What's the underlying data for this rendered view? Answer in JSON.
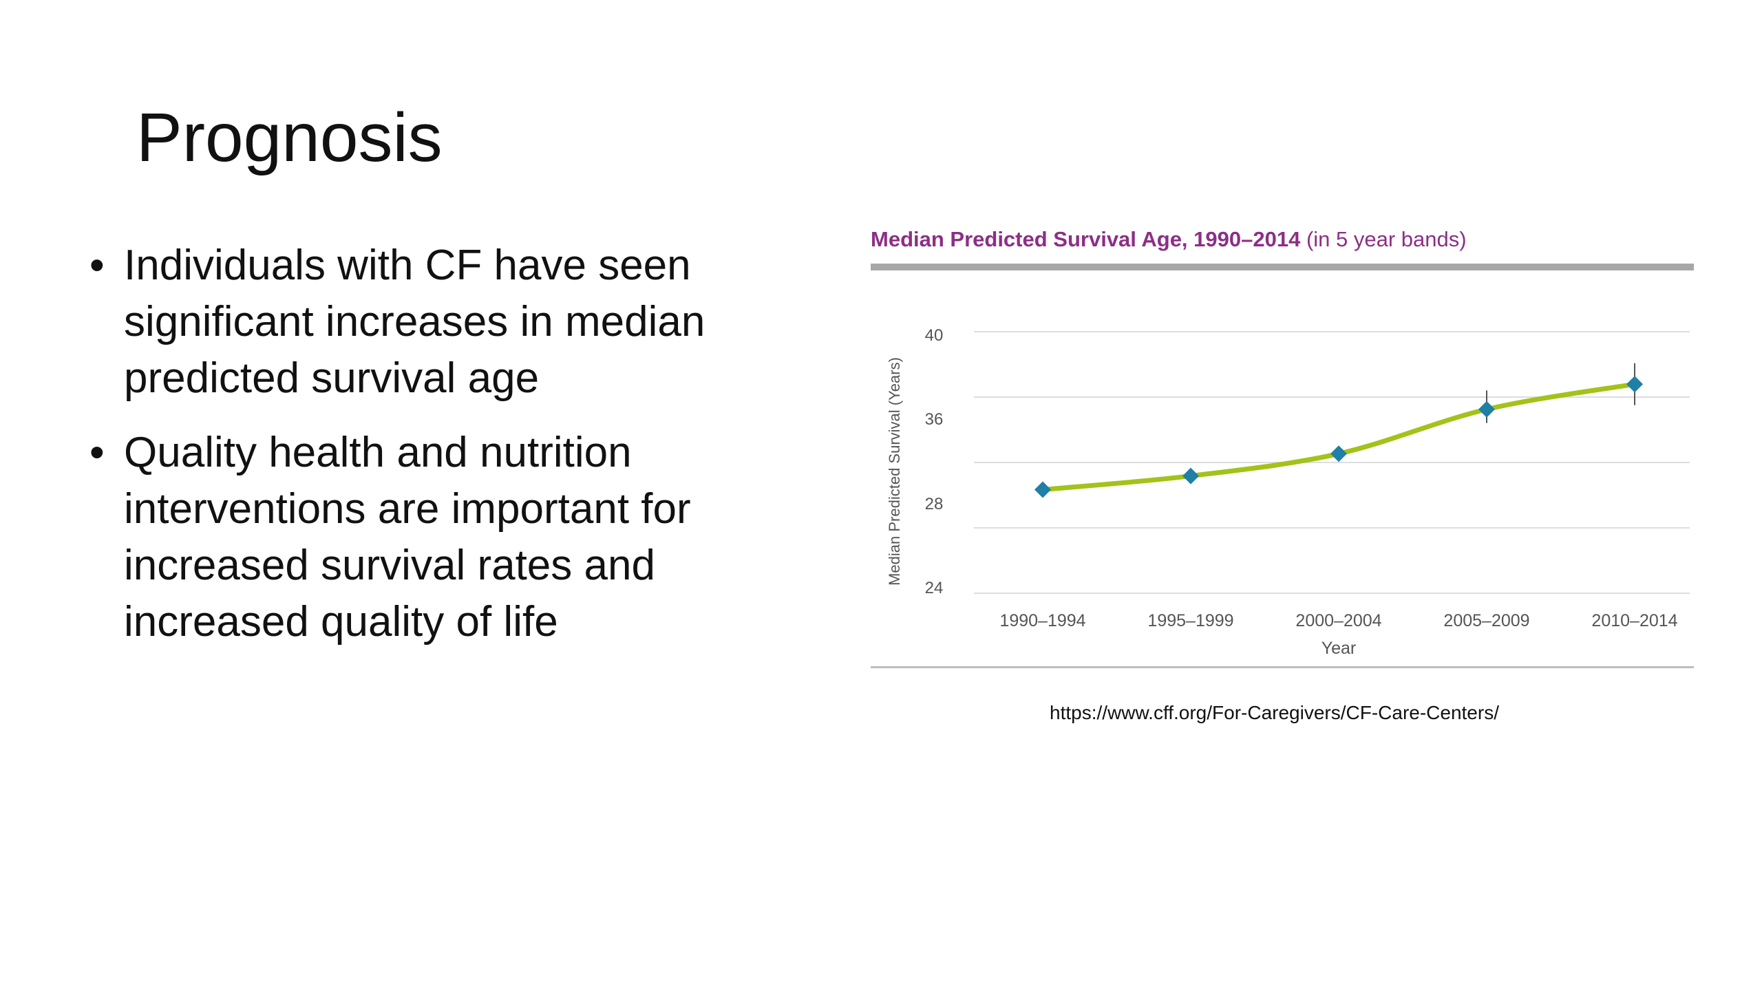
{
  "slide": {
    "title": "Prognosis",
    "bullets": [
      "Individuals with CF have seen significant increases in median predicted survival age",
      "Quality health and nutrition interventions are important for increased survival rates and increased quality of life"
    ],
    "source": "https://www.cff.org/For-Caregivers/CF-Care-Centers/"
  },
  "chart_data": {
    "type": "scatter",
    "title": "Median Predicted Survival Age, 1990–2014",
    "subtitle": "(in 5 year bands)",
    "xlabel": "Year",
    "ylabel": "Median Predicted Survival (Years)",
    "categories": [
      "1990–1994",
      "1995–1999",
      "2000–2004",
      "2005–2009",
      "2010–2014"
    ],
    "yticks": [
      "40",
      "36",
      "28",
      "24"
    ],
    "values": [
      29.2,
      30.5,
      32.6,
      36.4,
      37.6
    ],
    "error": [
      0.6,
      0.6,
      0.6,
      0.9,
      1.0
    ],
    "trend": "smooth fitted curve",
    "grid": true,
    "colors": {
      "title": "#8d2e86",
      "marker": "#1f7fa6",
      "trend": "#a3c21a",
      "grid": "#dddddd"
    }
  }
}
